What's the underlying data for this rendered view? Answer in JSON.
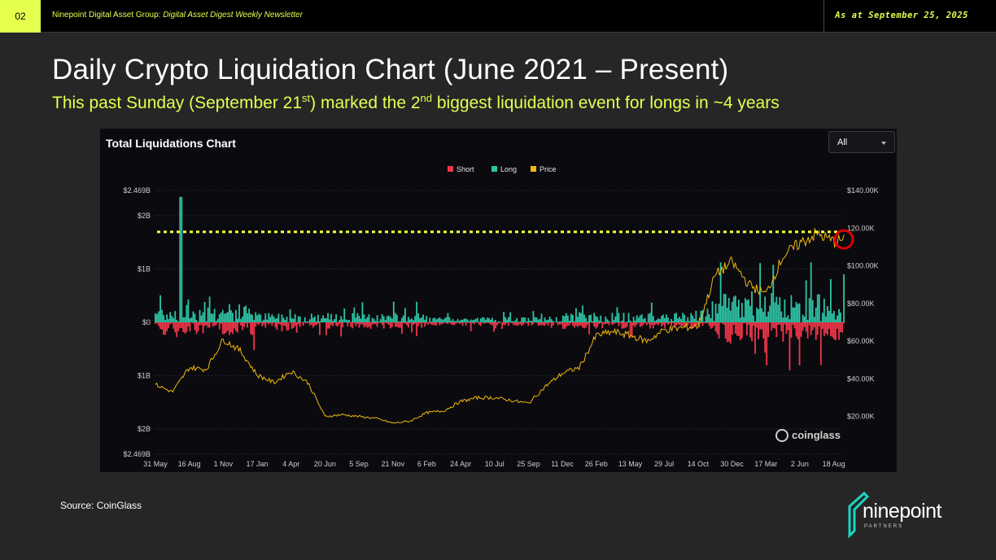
{
  "header": {
    "page_number": "02",
    "org": "Ninepoint Digital Asset Group:",
    "publication": "Digital Asset Digest Weekly Newsletter",
    "as_at": "As at September 25, 2025"
  },
  "title": "Daily Crypto Liquidation Chart (June 2021 – Present)",
  "subtitle": {
    "part1": "This past Sunday (September 21",
    "sup1": "st",
    "part2": ") marked the 2",
    "sup2": "nd",
    "part3": " biggest liquidation event for longs in ~4 years"
  },
  "panel": {
    "title": "Total Liquidations Chart",
    "range_select": "All",
    "watermark": "coinglass"
  },
  "source": "Source: CoinGlass",
  "logo": {
    "word": "ninepoint",
    "sub": "PARTNERS"
  },
  "colors": {
    "accent": "#e5ff4f",
    "short": "#f2364b",
    "long": "#2ec4a6",
    "price": "#f0b90b",
    "highlight": "#e00000"
  },
  "chart_data": {
    "type": "bar",
    "title": "Total Liquidations Chart",
    "series_legend": [
      "Short",
      "Long",
      "Price"
    ],
    "left_axis": {
      "unit": "USD",
      "ylim": [
        -2.469,
        2.469
      ],
      "tick_values": [
        2.469,
        2,
        1,
        0,
        -1,
        -2,
        -2.469
      ],
      "tick_labels": [
        "$2.469B",
        "$2B",
        "$1B",
        "$0",
        "$1B",
        "$2B",
        "$2.469B"
      ]
    },
    "right_axis": {
      "unit": "USD",
      "ylim": [
        0,
        140000
      ],
      "tick_values": [
        140000,
        120000,
        100000,
        80000,
        60000,
        40000,
        20000
      ],
      "tick_labels": [
        "$140.00K",
        "120.00K",
        "$100.00K",
        "$80.00K",
        "$60.00K",
        "$40.00K",
        "$20.00K"
      ]
    },
    "x_tick_labels": [
      "31 May",
      "16 Aug",
      "1 Nov",
      "17 Jan",
      "4 Apr",
      "20 Jun",
      "5 Sep",
      "21 Nov",
      "6 Feb",
      "24 Apr",
      "10 Jul",
      "25 Sep",
      "11 Dec",
      "26 Feb",
      "13 May",
      "29 Jul",
      "14 Oct",
      "30 Dec",
      "17 Mar",
      "2 Jun",
      "18 Aug"
    ],
    "price_series": {
      "name": "Price",
      "x_tick_index": [
        0,
        0.5,
        1,
        1.5,
        2,
        2.5,
        3,
        3.5,
        4,
        4.5,
        5,
        5.5,
        6,
        6.5,
        7,
        7.5,
        8,
        8.5,
        9,
        9.5,
        10,
        10.5,
        11,
        11.5,
        12,
        12.5,
        13,
        13.5,
        14,
        14.5,
        15,
        15.5,
        16,
        16.5,
        17,
        17.5,
        18,
        18.5,
        19,
        19.5,
        20,
        20.3
      ],
      "values": [
        37000,
        33000,
        46000,
        45000,
        61000,
        55000,
        42000,
        38000,
        44000,
        38000,
        20000,
        21000,
        20000,
        19000,
        16500,
        17500,
        22000,
        23000,
        28000,
        30000,
        30000,
        28500,
        27000,
        36000,
        43000,
        46000,
        63000,
        65000,
        63000,
        60000,
        66000,
        67000,
        68000,
        95000,
        102000,
        90000,
        85000,
        105000,
        112000,
        117000,
        113000,
        114000
      ]
    },
    "liquidation_spikes": [
      {
        "label": "16 Aug area",
        "long_value": 2.35,
        "unit": "B"
      },
      {
        "label": "18 Aug area (Sep 21)",
        "long_value": 0.9,
        "unit": "B"
      }
    ],
    "reference_line": {
      "y_price": 118000,
      "style": "dotted",
      "color": "#f4ff3a"
    },
    "highlight_marker": {
      "shape": "circle",
      "position": "latest data point"
    }
  }
}
